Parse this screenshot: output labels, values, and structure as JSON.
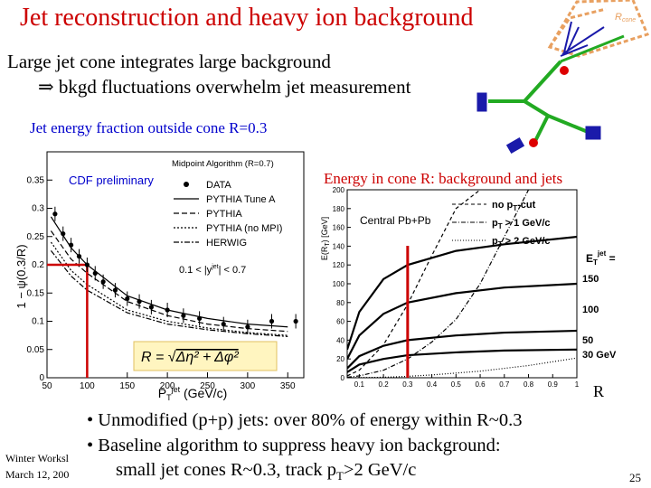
{
  "slide": {
    "title": "Jet reconstruction and heavy ion background",
    "intro_line1": "Large jet cone integrates large background",
    "intro_line2": "⇒ bkgd fluctuations overwhelm jet measurement",
    "plot1_caption": "Jet energy fraction outside cone R=0.3",
    "plot2_caption": "Energy in cone R: background and jets",
    "bullets": [
      "• Unmodified (p+p) jets: over 80% of energy within R~0.3",
      "• Baseline algorithm to suppress heavy ion background:"
    ],
    "bullet3": "small jet cones R~0.3, track p",
    "bullet3_sub": "T",
    "bullet3_tail": ">2 GeV/c",
    "footer_event": "Winter Worksl",
    "footer_date": "March 12, 200",
    "page_number": "25",
    "r_axis_label": "R",
    "diagram_label": "R",
    "diagram_label_sub": "cone",
    "colors": {
      "title": "#cc0000",
      "caption_blue": "#0000cc",
      "highlight": "#cc0000",
      "jet_green": "#22aa22",
      "cone_orange": "#e8a060"
    }
  },
  "chart_data": [
    {
      "type": "scatter",
      "title": "Midpoint Algorithm (R=0.7)",
      "annotation": "CDF preliminary",
      "cut_label": "0.1 < |y",
      "cut_label_sup": "jet",
      "cut_label_tail": "| < 0.7",
      "formula_lhs": "R = ",
      "formula_rhs": "Δη² + Δφ²",
      "xlabel": "P",
      "xlabel_sub": "T",
      "xlabel_sup": "jet",
      "xlabel_unit": " (GeV/c)",
      "ylabel": "1 − ψ(0.3/R)",
      "xlim": [
        50,
        370
      ],
      "ylim": [
        0,
        0.4
      ],
      "x_ticks": [
        "50",
        "100",
        "150",
        "200",
        "250",
        "300",
        "350"
      ],
      "y_ticks": [
        "0",
        "0.05",
        "0.1",
        "0.15",
        "0.2",
        "0.25",
        "0.3",
        "0.35"
      ],
      "highlight_x": 100,
      "grid": false,
      "legend_position": "top-right",
      "legend": [
        "DATA",
        "PYTHIA Tune A",
        "PYTHIA",
        "PYTHIA (no MPI)",
        "HERWIG"
      ],
      "series": [
        {
          "name": "DATA",
          "x": [
            60,
            70,
            80,
            90,
            100,
            110,
            120,
            135,
            150,
            165,
            180,
            200,
            220,
            240,
            270,
            300,
            330,
            360
          ],
          "y": [
            0.29,
            0.255,
            0.235,
            0.215,
            0.2,
            0.185,
            0.17,
            0.155,
            0.14,
            0.135,
            0.125,
            0.12,
            0.11,
            0.105,
            0.095,
            0.09,
            0.1,
            0.1
          ]
        },
        {
          "name": "PYTHIA Tune A",
          "x": [
            55,
            80,
            100,
            150,
            200,
            250,
            300,
            350
          ],
          "y": [
            0.285,
            0.23,
            0.2,
            0.145,
            0.12,
            0.105,
            0.095,
            0.09
          ]
        },
        {
          "name": "PYTHIA",
          "x": [
            55,
            80,
            100,
            150,
            200,
            250,
            300,
            350
          ],
          "y": [
            0.26,
            0.21,
            0.185,
            0.135,
            0.11,
            0.095,
            0.087,
            0.082
          ]
        },
        {
          "name": "PYTHIA (no MPI)",
          "x": [
            55,
            80,
            100,
            150,
            200,
            250,
            300,
            350
          ],
          "y": [
            0.24,
            0.19,
            0.165,
            0.12,
            0.1,
            0.088,
            0.08,
            0.075
          ]
        },
        {
          "name": "HERWIG",
          "x": [
            55,
            80,
            100,
            150,
            200,
            250,
            300,
            350
          ],
          "y": [
            0.225,
            0.18,
            0.155,
            0.115,
            0.095,
            0.085,
            0.078,
            0.073
          ]
        }
      ]
    },
    {
      "type": "line",
      "annotation": "Central Pb+Pb",
      "ylabel": "E(R",
      "ylabel_sub": "T",
      "ylabel_unit": ") [GeV]",
      "xlim": [
        0.05,
        1.0
      ],
      "ylim": [
        0,
        200
      ],
      "x_ticks": [
        "0.1",
        "0.2",
        "0.3",
        "0.4",
        "0.5",
        "0.6",
        "0.7",
        "0.8",
        "0.9",
        "1"
      ],
      "y_ticks": [
        "0",
        "20",
        "40",
        "60",
        "80",
        "100",
        "120",
        "140",
        "160",
        "180",
        "200"
      ],
      "highlight_x": 0.3,
      "legend_position": "top-right",
      "legend": [
        {
          "label": "no p",
          "sub": "T",
          "tail": "-cut",
          "style": "dashed"
        },
        {
          "label": "p",
          "sub": "T",
          "tail": " > 1 GeV/c",
          "style": "dotdash"
        },
        {
          "label": "p",
          "sub": "T",
          "tail": " > 2 GeV/c",
          "style": "dotted"
        }
      ],
      "et_label": "E",
      "et_label_sub": "T",
      "et_label_sup": "jet",
      "et_label_tail": " =",
      "jet_energy_labels": [
        "150",
        "100",
        "50",
        "30 GeV"
      ],
      "jet_series": [
        {
          "name": "150",
          "x": [
            0.05,
            0.1,
            0.2,
            0.3,
            0.5,
            0.7,
            1.0
          ],
          "y": [
            30,
            70,
            105,
            120,
            135,
            142,
            150
          ]
        },
        {
          "name": "100",
          "x": [
            0.05,
            0.1,
            0.2,
            0.3,
            0.5,
            0.7,
            1.0
          ],
          "y": [
            20,
            45,
            68,
            80,
            90,
            96,
            100
          ]
        },
        {
          "name": "50",
          "x": [
            0.05,
            0.1,
            0.2,
            0.3,
            0.5,
            0.7,
            1.0
          ],
          "y": [
            10,
            23,
            34,
            40,
            45,
            48,
            50
          ]
        },
        {
          "name": "30 GeV",
          "x": [
            0.05,
            0.1,
            0.2,
            0.3,
            0.5,
            0.7,
            1.0
          ],
          "y": [
            6,
            14,
            20,
            24,
            27,
            29,
            30
          ]
        }
      ],
      "background_series": [
        {
          "name": "no pT-cut",
          "x": [
            0.05,
            0.1,
            0.2,
            0.3,
            0.4,
            0.5,
            0.6
          ],
          "y": [
            2,
            8,
            35,
            78,
            130,
            180,
            200
          ]
        },
        {
          "name": "pT > 1 GeV/c",
          "x": [
            0.05,
            0.1,
            0.2,
            0.3,
            0.4,
            0.5,
            0.6,
            0.7,
            0.8
          ],
          "y": [
            0.5,
            2,
            8,
            20,
            38,
            62,
            100,
            150,
            200
          ]
        },
        {
          "name": "pT > 2 GeV/c",
          "x": [
            0.05,
            0.2,
            0.3,
            0.4,
            0.5,
            0.6,
            0.7,
            0.8,
            0.9,
            1.0
          ],
          "y": [
            0,
            0.5,
            1.5,
            3,
            5,
            7,
            10,
            13,
            17,
            21
          ]
        }
      ]
    }
  ]
}
